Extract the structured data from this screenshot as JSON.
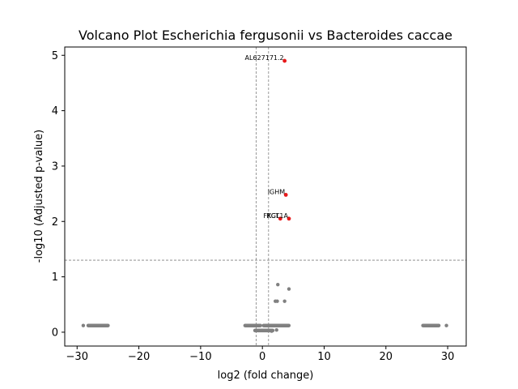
{
  "chart_data": {
    "type": "scatter",
    "title": "Volcano Plot Escherichia fergusonii vs Bacteroides caccae",
    "xlabel": "log2 (fold change)",
    "ylabel": "-log10 (Adjusted p-value)",
    "xlim": [
      -32,
      33
    ],
    "ylim": [
      -0.25,
      5.15
    ],
    "xticks": [
      -30,
      -20,
      -10,
      0,
      10,
      20,
      30
    ],
    "xtick_labels": [
      "−30",
      "−20",
      "−10",
      "0",
      "10",
      "20",
      "30"
    ],
    "yticks": [
      0,
      1,
      2,
      3,
      4,
      5
    ],
    "ytick_labels": [
      "0",
      "1",
      "2",
      "3",
      "4",
      "5"
    ],
    "thresholds": {
      "fc_lines": [
        -1,
        1
      ],
      "p_line": 1.3
    },
    "colors": {
      "significant": "#e8191b",
      "nonsignificant": "#808080",
      "threshold": "#808080"
    },
    "significant_points": [
      {
        "x": 3.6,
        "y": 4.9,
        "label": "AL627171.2"
      },
      {
        "x": 3.8,
        "y": 2.48,
        "label": "IGHM"
      },
      {
        "x": 2.9,
        "y": 2.05,
        "label": "FKCT"
      },
      {
        "x": 4.3,
        "y": 2.05,
        "label": "RGL1A"
      }
    ],
    "nonsignificant_points": [
      {
        "x": 2.5,
        "y": 0.86
      },
      {
        "x": 4.3,
        "y": 0.78
      },
      {
        "x": 2.1,
        "y": 0.56
      },
      {
        "x": 2.4,
        "y": 0.56
      },
      {
        "x": 3.6,
        "y": 0.56
      },
      {
        "x": -29.0,
        "y": 0.12
      },
      {
        "x": 29.8,
        "y": 0.12
      },
      {
        "x": 1.5,
        "y": 0.02
      },
      {
        "x": 2.3,
        "y": 0.04
      }
    ],
    "nonsignificant_runs": [
      {
        "x_from": -28.2,
        "x_to": -25.0,
        "y": 0.12
      },
      {
        "x_from": -2.8,
        "x_to": -0.3,
        "y": 0.12
      },
      {
        "x_from": 0.2,
        "x_to": 4.3,
        "y": 0.12
      },
      {
        "x_from": -1.2,
        "x_to": 1.7,
        "y": 0.03
      },
      {
        "x_from": 26.0,
        "x_to": 28.6,
        "y": 0.12
      }
    ]
  }
}
